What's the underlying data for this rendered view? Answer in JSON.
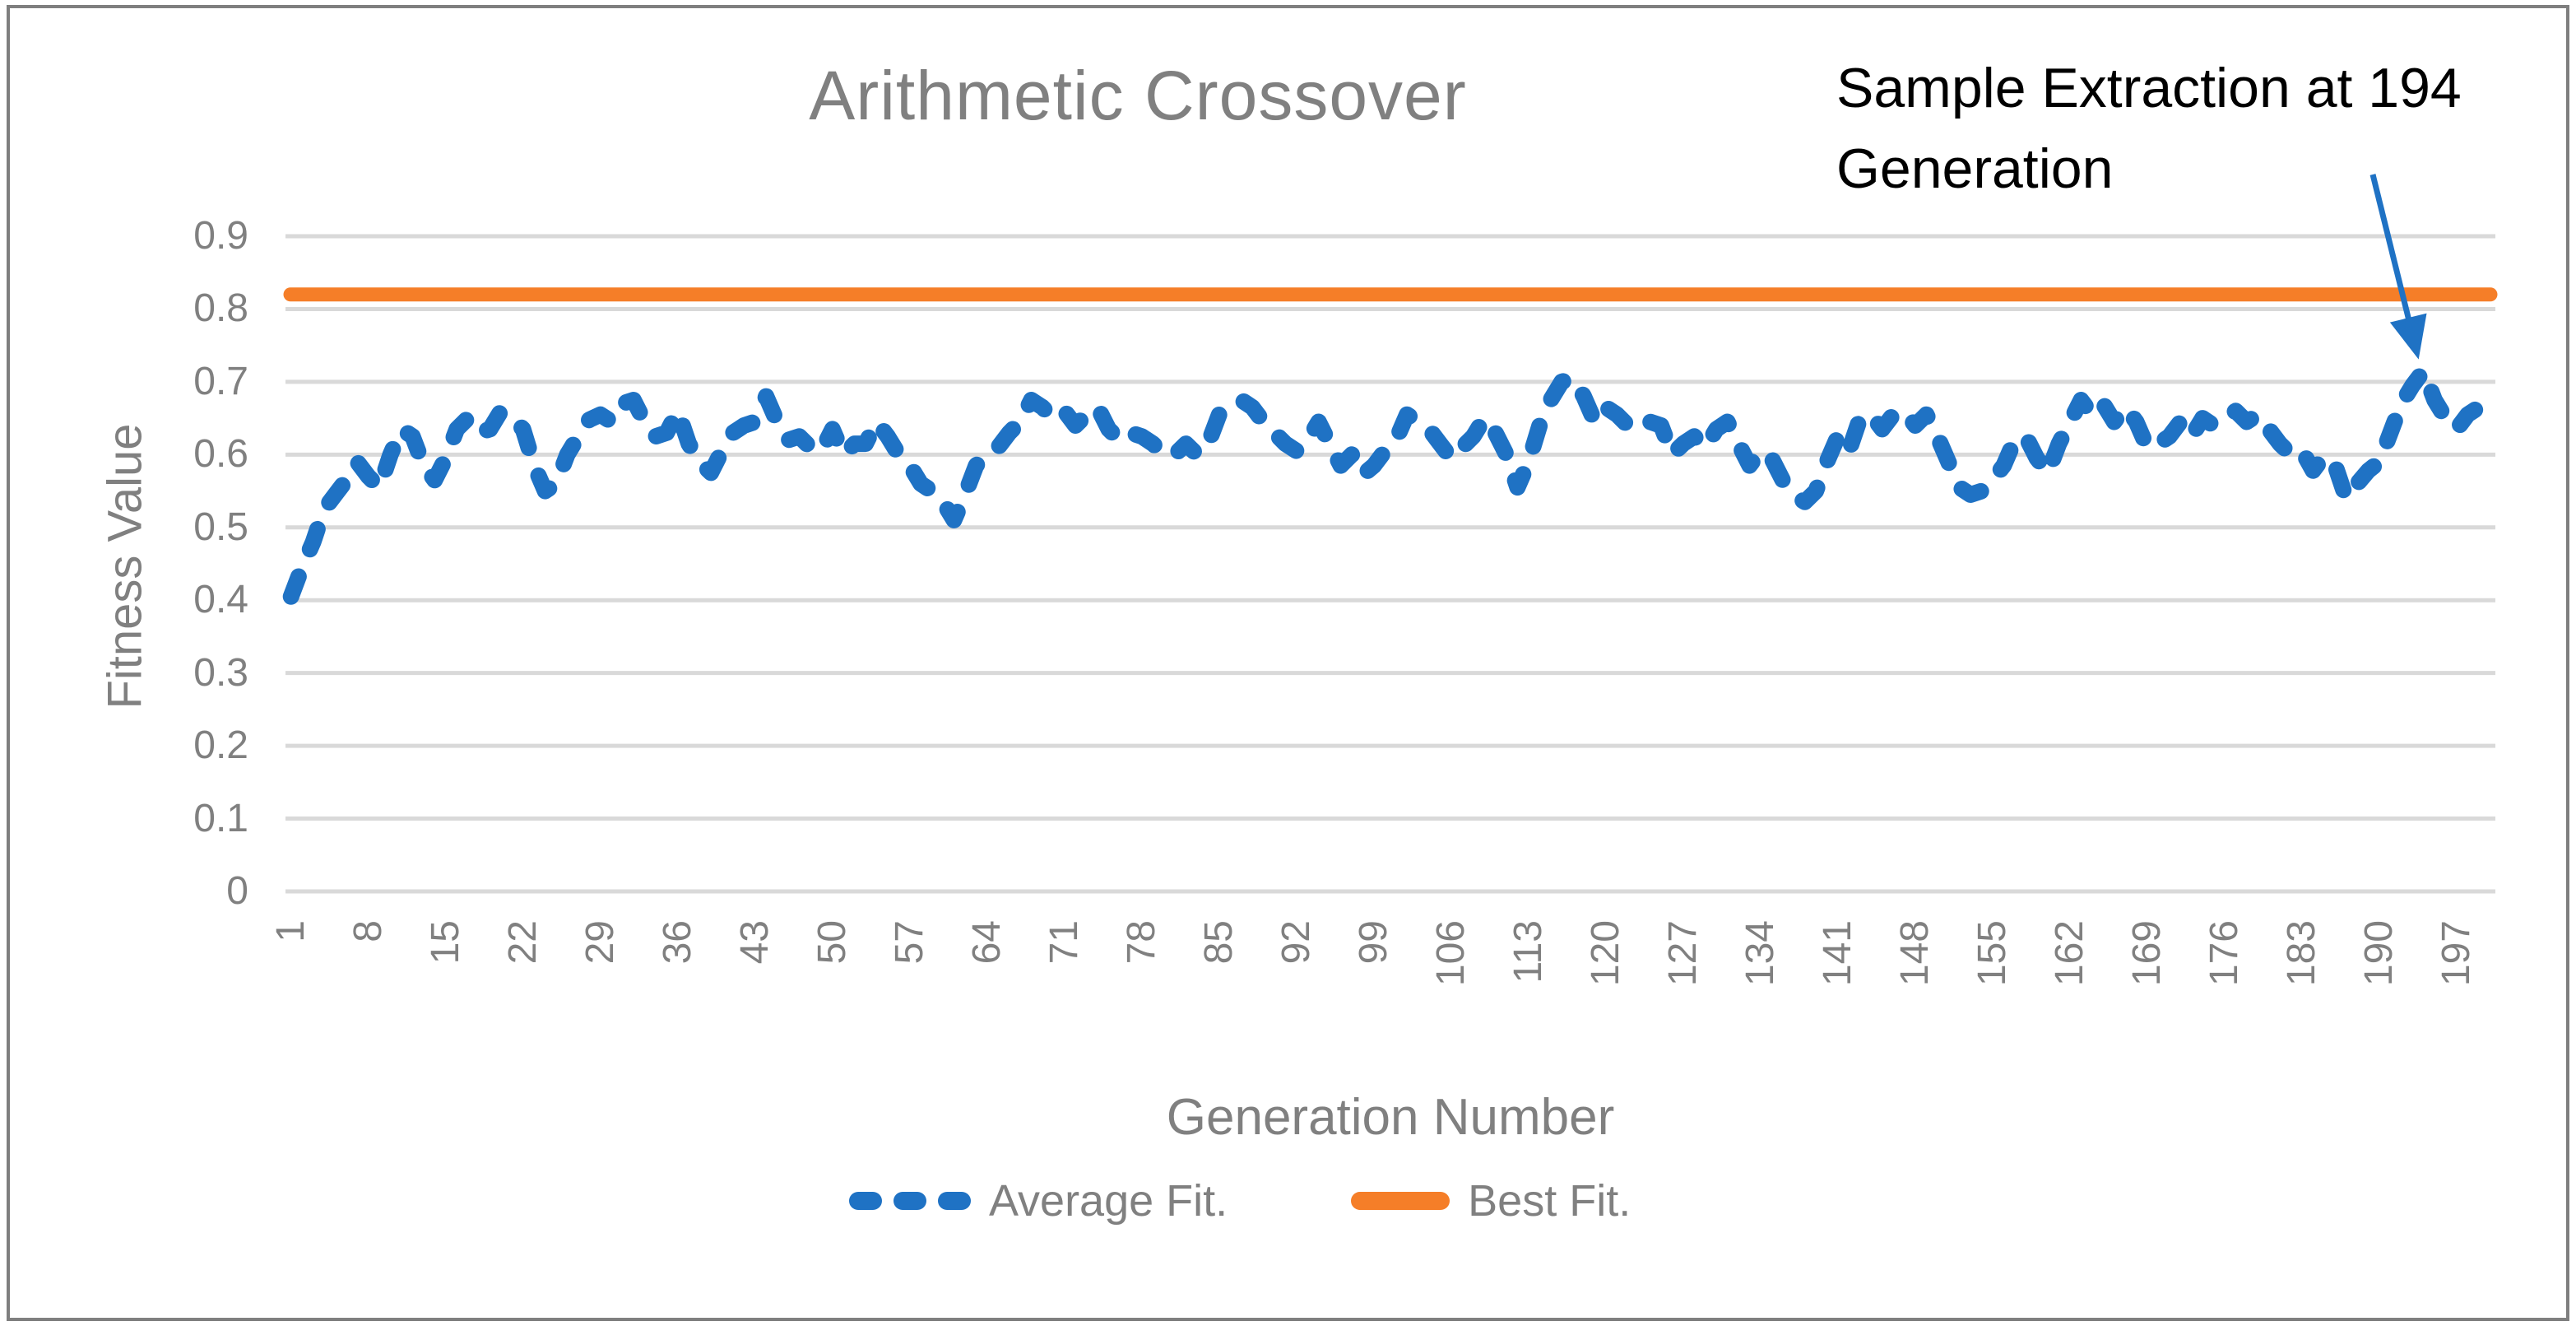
{
  "window": {
    "background": "#FFFFFF",
    "border_color": "#7F7F7F"
  },
  "chart": {
    "title": "Arithmetic Crossover",
    "annotation": {
      "line1": "Sample Extraction at 194",
      "line2": "Generation"
    },
    "x_axis": {
      "title": "Generation Number",
      "ticks": [
        1,
        8,
        15,
        22,
        29,
        36,
        43,
        50,
        57,
        64,
        71,
        78,
        85,
        92,
        99,
        106,
        113,
        120,
        127,
        134,
        141,
        148,
        155,
        162,
        169,
        176,
        183,
        190,
        197
      ]
    },
    "y_axis": {
      "title": "Fitness Value",
      "ticks": [
        "0",
        "0.1",
        "0.2",
        "0.3",
        "0.4",
        "0.5",
        "0.6",
        "0.7",
        "0.8",
        "0.9"
      ]
    },
    "legend": [
      {
        "label": "Average Fit.",
        "style": "dashed",
        "color": "#1F72C4"
      },
      {
        "label": "Best Fit.",
        "style": "solid",
        "color": "#F57E28"
      }
    ]
  },
  "chart_data": {
    "type": "line",
    "title": "Arithmetic Crossover",
    "xlabel": "Generation Number",
    "ylabel": "Fitness Value",
    "xlim": [
      1,
      200
    ],
    "ylim": [
      0,
      0.9
    ],
    "grid": true,
    "gridline_color": "#D9D9D9",
    "text_color": "#808080",
    "legend_position": "bottom",
    "x_ticks": [
      1,
      8,
      15,
      22,
      29,
      36,
      43,
      50,
      57,
      64,
      71,
      78,
      85,
      92,
      99,
      106,
      113,
      120,
      127,
      134,
      141,
      148,
      155,
      162,
      169,
      176,
      183,
      190,
      197
    ],
    "y_ticks": [
      0,
      0.1,
      0.2,
      0.3,
      0.4,
      0.5,
      0.6,
      0.7,
      0.8,
      0.9
    ],
    "annotation": {
      "text": "Sample Extraction at 194 Generation",
      "target_generation": 194,
      "arrow_color": "#1F72C4"
    },
    "series": [
      {
        "name": "Average Fit.",
        "style": "dashed",
        "color": "#1F72C4",
        "x_start": 1,
        "x_step": 1,
        "values": [
          0.405,
          0.445,
          0.48,
          0.525,
          0.545,
          0.565,
          0.59,
          0.57,
          0.555,
          0.6,
          0.635,
          0.625,
          0.585,
          0.565,
          0.595,
          0.635,
          0.65,
          0.63,
          0.635,
          0.66,
          0.65,
          0.635,
          0.585,
          0.55,
          0.56,
          0.6,
          0.625,
          0.648,
          0.655,
          0.645,
          0.67,
          0.675,
          0.645,
          0.625,
          0.63,
          0.66,
          0.615,
          0.59,
          0.575,
          0.605,
          0.63,
          0.64,
          0.645,
          0.68,
          0.645,
          0.62,
          0.625,
          0.61,
          0.605,
          0.635,
          0.6,
          0.615,
          0.615,
          0.645,
          0.625,
          0.6,
          0.585,
          0.56,
          0.55,
          0.535,
          0.51,
          0.545,
          0.585,
          0.6,
          0.61,
          0.63,
          0.645,
          0.675,
          0.665,
          0.65,
          0.66,
          0.64,
          0.655,
          0.665,
          0.635,
          0.62,
          0.63,
          0.625,
          0.615,
          0.6,
          0.6,
          0.615,
          0.6,
          0.615,
          0.655,
          0.665,
          0.675,
          0.665,
          0.645,
          0.63,
          0.615,
          0.605,
          0.62,
          0.645,
          0.615,
          0.585,
          0.6,
          0.572,
          0.585,
          0.605,
          0.62,
          0.655,
          0.645,
          0.635,
          0.615,
          0.595,
          0.61,
          0.625,
          0.65,
          0.63,
          0.6,
          0.555,
          0.59,
          0.64,
          0.675,
          0.7,
          0.705,
          0.68,
          0.645,
          0.665,
          0.655,
          0.64,
          0.635,
          0.645,
          0.64,
          0.6,
          0.615,
          0.625,
          0.61,
          0.635,
          0.645,
          0.615,
          0.585,
          0.605,
          0.595,
          0.565,
          0.545,
          0.535,
          0.55,
          0.59,
          0.625,
          0.605,
          0.65,
          0.655,
          0.635,
          0.655,
          0.66,
          0.64,
          0.655,
          0.625,
          0.59,
          0.555,
          0.545,
          0.55,
          0.565,
          0.585,
          0.62,
          0.625,
          0.595,
          0.575,
          0.615,
          0.645,
          0.675,
          0.655,
          0.67,
          0.645,
          0.665,
          0.645,
          0.61,
          0.615,
          0.625,
          0.645,
          0.625,
          0.65,
          0.64,
          0.65,
          0.66,
          0.645,
          0.655,
          0.635,
          0.615,
          0.6,
          0.605,
          0.578,
          0.598,
          0.585,
          0.54,
          0.56,
          0.578,
          0.59,
          0.63,
          0.67,
          0.695,
          0.715,
          0.675,
          0.65,
          0.635,
          0.655,
          0.665,
          0.655
        ]
      },
      {
        "name": "Best Fit.",
        "style": "solid",
        "color": "#F57E28",
        "constant_value": 0.82
      }
    ]
  }
}
